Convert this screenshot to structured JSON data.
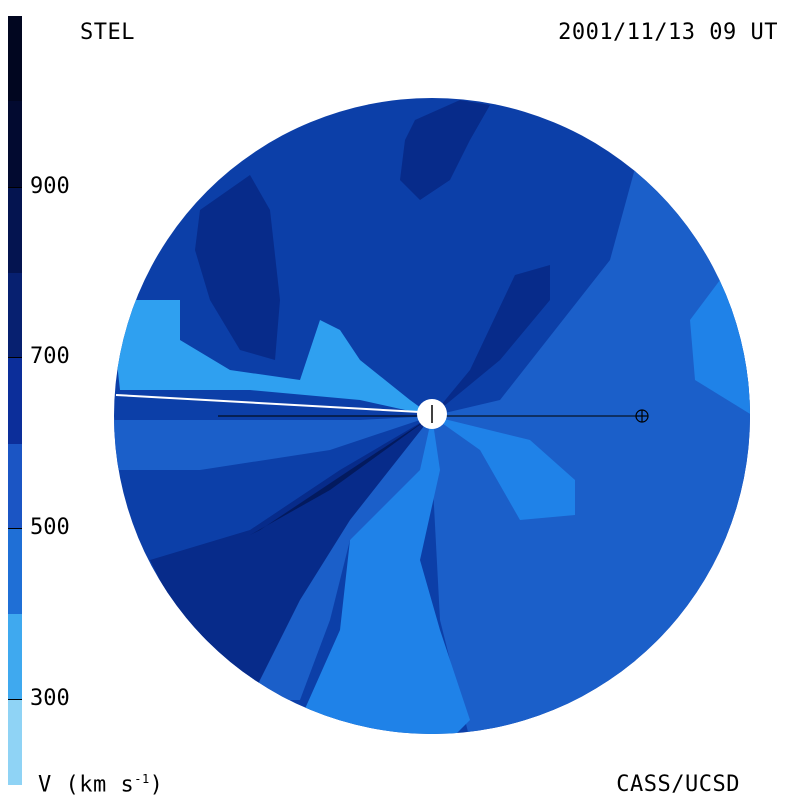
{
  "header": {
    "observer": "STEL",
    "datetime": "2001/11/13 09 UT"
  },
  "footer": {
    "quantity": "V (km s⁻¹)",
    "credit": "CASS/UCSD"
  },
  "colorbar": {
    "levels": [
      {
        "min": 200,
        "max": 300,
        "color": "#8fd3f5"
      },
      {
        "min": 300,
        "max": 400,
        "color": "#3fa9ef"
      },
      {
        "min": 400,
        "max": 500,
        "color": "#1f6fd6"
      },
      {
        "min": 500,
        "max": 600,
        "color": "#1b55c4"
      },
      {
        "min": 600,
        "max": 700,
        "color": "#0c2e9a"
      },
      {
        "min": 700,
        "max": 800,
        "color": "#072070"
      },
      {
        "min": 800,
        "max": 900,
        "color": "#041450"
      },
      {
        "min": 900,
        "max": 1000,
        "color": "#020a30"
      }
    ],
    "tick_labels": [
      "900",
      "700",
      "500",
      "300"
    ]
  },
  "map": {
    "colors": {
      "base": "#0c3fa8",
      "mid": "#1b5fc9",
      "light": "#1f82e8",
      "lighter": "#2fa0f0",
      "dark": "#072b8a",
      "darker": "#031a5e"
    },
    "sun_marker": "sun-icon",
    "earth_marker": "earth-icon"
  }
}
